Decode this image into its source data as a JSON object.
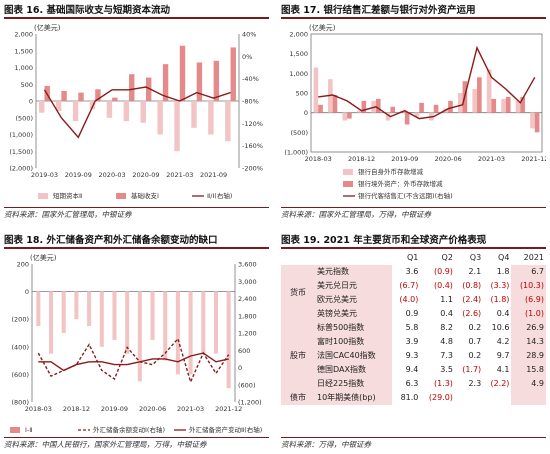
{
  "charts": [
    {
      "title": "图表 16. 基础国际收支与短期资本流动",
      "source": "资料来源：国家外汇管理局，中银证券",
      "unit_label": "(亿美元)"
    },
    {
      "title": "图表 17. 银行结售汇差额与银行对外资产运用",
      "source": "资料来源：国家外汇管理局，万得，中银证券",
      "unit_label": "(亿美元)"
    },
    {
      "title": "图表 18. 外汇储备资产和外汇储备余额变动的缺口",
      "source": "资料来源：中国人民银行，国家外汇管理局，万得，中银证券",
      "unit_label": "(亿美元)"
    }
  ],
  "chart_data": [
    {
      "type": "bar",
      "title": "图表 16. 基础国际收支与短期资本流动",
      "x_ticks": [
        "2019-03",
        "2019-09",
        "2020-03",
        "2020-09",
        "2021-03",
        "2021-09"
      ],
      "ylim": [
        -2000,
        2000
      ],
      "y_ticks": [
        "2,000",
        "1,500",
        "1,000",
        "500",
        "0",
        "(500)",
        "(1,000)",
        "(1,500)",
        "(2,000)"
      ],
      "y2lim": [
        -200,
        40
      ],
      "y2_ticks": [
        "40%",
        "0%",
        "-40%",
        "-80%",
        "-120%",
        "-160%",
        "-200%"
      ],
      "x": [
        "2019-03",
        "2019-06",
        "2019-09",
        "2019-12",
        "2020-03",
        "2020-06",
        "2020-09",
        "2020-12",
        "2021-03",
        "2021-06",
        "2021-09",
        "2021-12"
      ],
      "series": [
        {
          "name": "短期资本Ⅱ",
          "values": [
            -350,
            -300,
            -600,
            -250,
            -500,
            -600,
            -650,
            -1000,
            -1500,
            -800,
            -1000,
            -1200
          ]
        },
        {
          "name": "基础收支Ⅰ",
          "values": [
            450,
            300,
            250,
            350,
            100,
            800,
            700,
            1100,
            1650,
            1150,
            1200,
            1600
          ]
        },
        {
          "name": "Ⅱ/Ⅰ(右轴)",
          "values": [
            -60,
            -110,
            -145,
            -80,
            -60,
            -60,
            -55,
            -70,
            -80,
            -65,
            -75,
            -65
          ]
        }
      ]
    },
    {
      "type": "bar",
      "title": "图表 17. 银行结售汇差额与银行对外资产运用",
      "x_ticks": [
        "2018-03",
        "2018-12",
        "2019-09",
        "2020-06",
        "2021-03",
        "2021-12"
      ],
      "ylim": [
        -1000,
        2000
      ],
      "y_ticks": [
        "2,000",
        "1,500",
        "1,000",
        "500",
        "0",
        "(500)",
        "(1,000)"
      ],
      "x": [
        "2018-03",
        "2018-06",
        "2018-09",
        "2018-12",
        "2019-03",
        "2019-06",
        "2019-09",
        "2019-12",
        "2020-03",
        "2020-06",
        "2020-09",
        "2020-12",
        "2021-03",
        "2021-06",
        "2021-09",
        "2021-12"
      ],
      "series": [
        {
          "name": "银行自身外币存款增减",
          "values": [
            1150,
            850,
            -200,
            50,
            300,
            -200,
            50,
            -100,
            -200,
            100,
            500,
            600,
            1100,
            350,
            300,
            -400
          ]
        },
        {
          "name": "银行境外资产：外币存款增减",
          "values": [
            200,
            450,
            -150,
            300,
            350,
            150,
            -300,
            250,
            200,
            300,
            800,
            900,
            350,
            400,
            400,
            -500
          ]
        },
        {
          "name": "银行代客结售汇(不含远期)(右轴)",
          "values": [
            400,
            450,
            300,
            50,
            150,
            -100,
            50,
            -150,
            -100,
            100,
            200,
            1650,
            900,
            600,
            250,
            900
          ]
        }
      ]
    },
    {
      "type": "bar",
      "title": "图表 18. 外汇储备资产和外汇储备余额变动的缺口",
      "x_ticks": [
        "2018-03",
        "2018-12",
        "2019-09",
        "2020-06",
        "2021-03",
        "2021-12"
      ],
      "ylim": [
        -800,
        200
      ],
      "y_ticks": [
        "200",
        "0",
        "(200)",
        "(400)",
        "(600)",
        "(800)"
      ],
      "y2lim": [
        -1200,
        3600
      ],
      "y2_ticks": [
        "3,600",
        "3,000",
        "2,400",
        "1,800",
        "1,200",
        "600",
        "0",
        "(600)",
        "(1,200)"
      ],
      "x": [
        "2018-03",
        "2018-06",
        "2018-09",
        "2018-12",
        "2019-03",
        "2019-06",
        "2019-09",
        "2019-12",
        "2020-03",
        "2020-06",
        "2020-09",
        "2020-12",
        "2021-03",
        "2021-06",
        "2021-09",
        "2021-12"
      ],
      "series": [
        {
          "name": "Ⅰ-Ⅱ",
          "values": [
            -250,
            -450,
            -300,
            -200,
            -250,
            -400,
            -350,
            -450,
            -650,
            -350,
            -500,
            -600,
            -600,
            -450,
            -450,
            -700
          ]
        },
        {
          "name": "外汇储备余额变动Ⅰ(右轴)",
          "values": [
            500,
            -300,
            -100,
            100,
            800,
            -100,
            -400,
            700,
            200,
            100,
            500,
            1000,
            -500,
            500,
            -200,
            450
          ]
        },
        {
          "name": "外汇储备资产变动Ⅱ(右轴)",
          "values": [
            200,
            200,
            -100,
            100,
            200,
            200,
            100,
            100,
            200,
            300,
            300,
            200,
            400,
            500,
            200,
            300
          ]
        }
      ]
    },
    {
      "type": "table",
      "title": "图表 19. 2021 年主要货币和全球资产价格表现",
      "columns": [
        "",
        "",
        "Q1",
        "Q2",
        "Q3",
        "Q4",
        "2021"
      ],
      "groups": [
        {
          "name": "货币",
          "rows": [
            {
              "label": "美元指数",
              "cells": [
                "3.6",
                "(0.9)",
                "2.1",
                "1.8",
                "6.7"
              ]
            },
            {
              "label": "美元兑日元",
              "cells": [
                "(6.7)",
                "(0.4)",
                "(0.8)",
                "(3.3)",
                "(10.3)"
              ]
            },
            {
              "label": "欧元兑美元",
              "cells": [
                "(4.0)",
                "1.1",
                "(2.4)",
                "(1.8)",
                "(6.9)"
              ]
            },
            {
              "label": "英镑兑美元",
              "cells": [
                "0.9",
                "0.4",
                "(2.6)",
                "0.4",
                "(1.0)"
              ]
            }
          ]
        },
        {
          "name": "股市",
          "rows": [
            {
              "label": "标普500指数",
              "cells": [
                "5.8",
                "8.2",
                "0.2",
                "10.6",
                "26.9"
              ]
            },
            {
              "label": "富时100指数",
              "cells": [
                "3.9",
                "4.8",
                "0.7",
                "4.2",
                "14.3"
              ]
            },
            {
              "label": "法国CAC40指数",
              "cells": [
                "9.3",
                "7.3",
                "0.2",
                "9.7",
                "28.9"
              ]
            },
            {
              "label": "德国DAX指数",
              "cells": [
                "9.4",
                "3.5",
                "(1.7)",
                "4.1",
                "15.8"
              ]
            },
            {
              "label": "日经225指数",
              "cells": [
                "6.3",
                "(1.3)",
                "2.3",
                "(2.2)",
                "4.9"
              ]
            }
          ]
        },
        {
          "name": "债市",
          "rows": [
            {
              "label": "10年期美债(bp)",
              "cells": [
                "81.0",
                "(29.0)",
                "",
                "",
                ""
              ]
            }
          ]
        }
      ],
      "source": "资料来源：万得，中银证券"
    }
  ]
}
